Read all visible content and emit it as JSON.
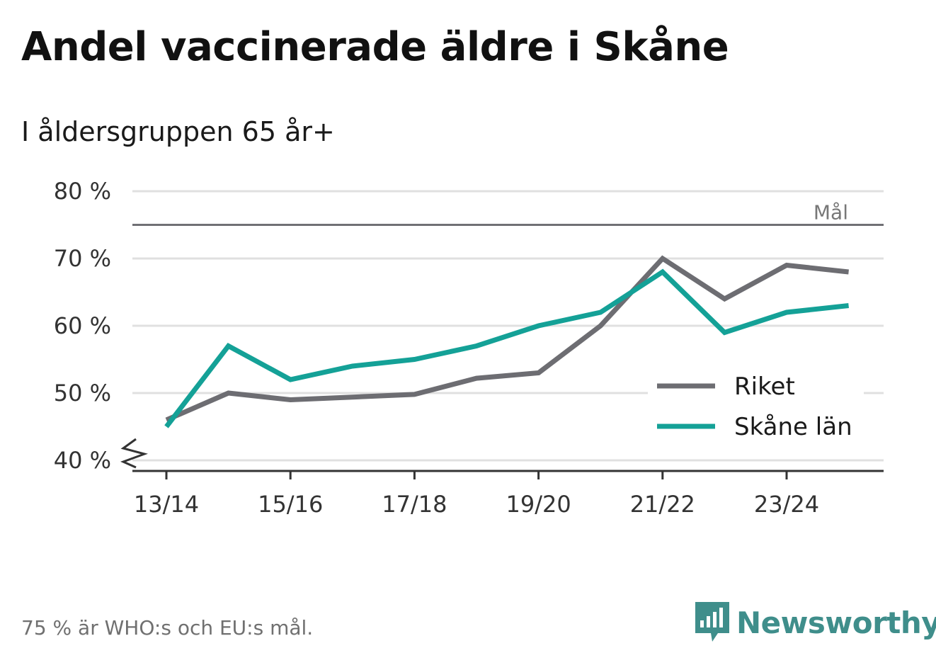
{
  "chart_data": {
    "type": "line",
    "title": "Andel vaccinerade äldre i Skåne",
    "subtitle": "I åldersgruppen 65 år+",
    "x": [
      "13/14",
      "14/15",
      "15/16",
      "16/17",
      "17/18",
      "18/19",
      "19/20",
      "20/21",
      "21/22",
      "22/23",
      "23/24",
      "24/25"
    ],
    "x_tick_labels": [
      "13/14",
      "15/16",
      "17/18",
      "19/20",
      "21/22",
      "23/24"
    ],
    "y_ticks": [
      40,
      50,
      60,
      70,
      80
    ],
    "y_tick_labels": [
      "40 %",
      "50 %",
      "60 %",
      "70 %",
      "80 %"
    ],
    "ylim": [
      40,
      80
    ],
    "y_axis_broken": true,
    "grid": true,
    "series": [
      {
        "name": "Riket",
        "color": "#6d6d72",
        "values": [
          46,
          50,
          49,
          49.4,
          49.8,
          52.2,
          53,
          60,
          70,
          64,
          69,
          68
        ]
      },
      {
        "name": "Skåne län",
        "color": "#14a197",
        "values": [
          45,
          57,
          52,
          54,
          55,
          57,
          60,
          62,
          68,
          59,
          62,
          63
        ]
      }
    ],
    "reference_line": {
      "value": 75,
      "label": "Mål",
      "color": "#707075"
    },
    "legend_position": "bottom-right"
  },
  "footnote": "75 % är WHO:s och EU:s mål.",
  "brand": {
    "name": "Newsworthy",
    "color": "#3f8e8b",
    "icon": "newsworthy-logo-icon"
  }
}
